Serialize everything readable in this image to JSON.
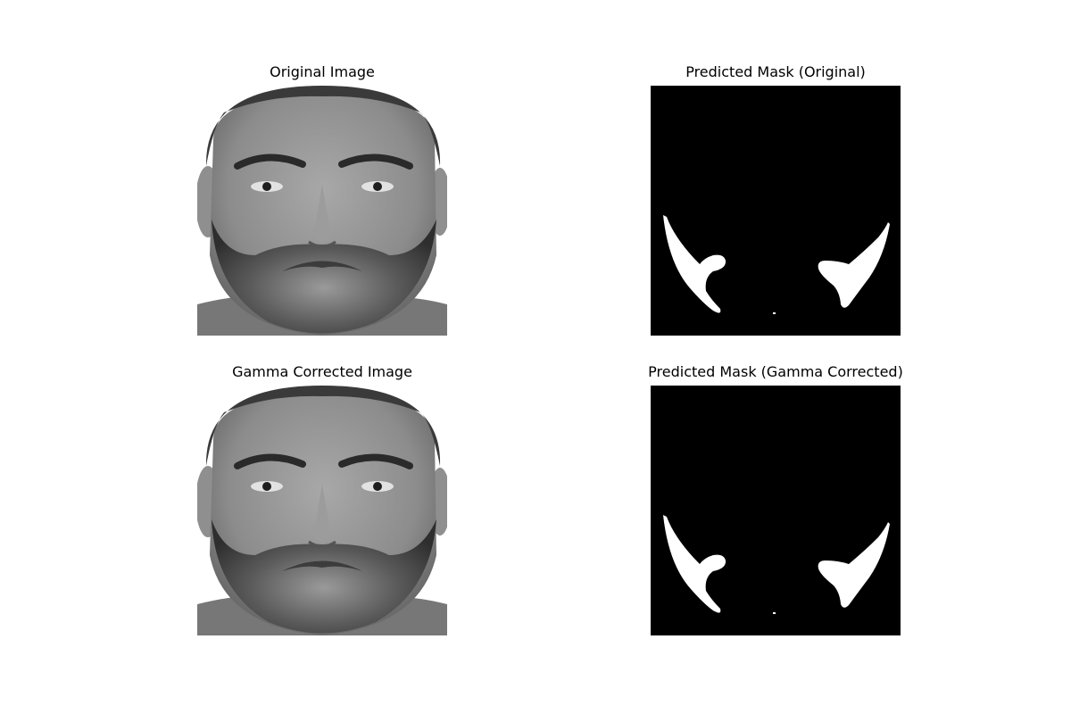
{
  "figure": {
    "panels": [
      {
        "title": "Original Image",
        "kind": "face"
      },
      {
        "title": "Predicted Mask (Original)",
        "kind": "mask"
      },
      {
        "title": "Gamma Corrected Image",
        "kind": "face"
      },
      {
        "title": "Predicted Mask (Gamma Corrected)",
        "kind": "mask"
      }
    ],
    "colors": {
      "background": "#ffffff",
      "mask_background": "#000000",
      "mask_foreground": "#ffffff"
    }
  }
}
